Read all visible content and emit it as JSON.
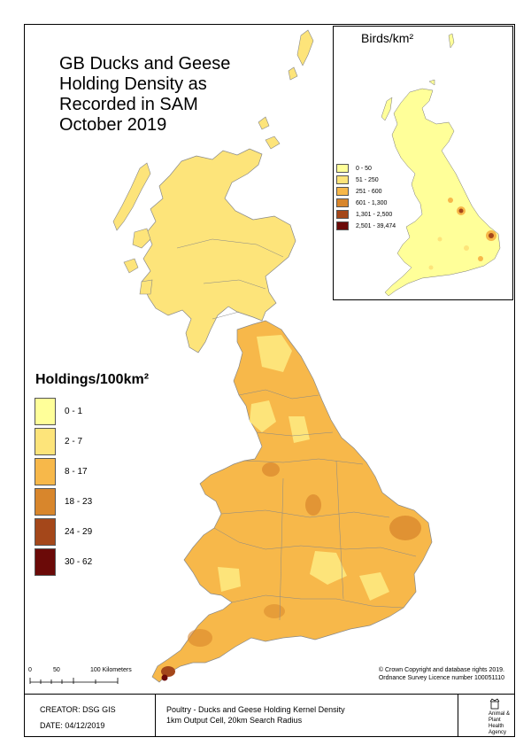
{
  "title_lines": [
    "GB Ducks and Geese",
    "Holding Density as",
    "Recorded in SAM",
    "October 2019"
  ],
  "legend": {
    "title": "Holdings/100km²",
    "classes": [
      {
        "label": "0 - 1",
        "color": "#ffff99"
      },
      {
        "label": "2 - 7",
        "color": "#fde47a"
      },
      {
        "label": "8 - 17",
        "color": "#f7b84a"
      },
      {
        "label": "18 - 23",
        "color": "#d8862c"
      },
      {
        "label": "24 - 29",
        "color": "#a4471a"
      },
      {
        "label": "30 - 62",
        "color": "#6b0a08"
      }
    ]
  },
  "inset": {
    "title": "Birds/km²",
    "classes": [
      {
        "label": "0 - 50",
        "color": "#ffff99"
      },
      {
        "label": "51 - 250",
        "color": "#fde47a"
      },
      {
        "label": "251 - 600",
        "color": "#f7b84a"
      },
      {
        "label": "601 - 1,300",
        "color": "#d8862c"
      },
      {
        "label": "1,301 - 2,500",
        "color": "#a4471a"
      },
      {
        "label": "2,501 - 39,474",
        "color": "#6b0a08"
      }
    ]
  },
  "scale": {
    "labels": [
      "0",
      "50",
      "100 Kilometers"
    ]
  },
  "copyright": {
    "line1": "© Crown Copyright and database rights 2019.",
    "line2": "Ordnance Survey Licence number 100051110"
  },
  "footer": {
    "creator": "CREATOR: DSG GIS",
    "date": "DATE: 04/12/2019",
    "desc_line1": "Poultry - Ducks and Geese Holding Kernel Density",
    "desc_line2": "1km Output Cell, 20km Search Radius",
    "agency_lines": [
      "Animal &",
      "Plant Health",
      "Agency"
    ]
  },
  "colors": {
    "scotland": "#fde47a",
    "england": "#f7b84a",
    "hotspot": "#6b0a08",
    "boundary": "#888888"
  }
}
